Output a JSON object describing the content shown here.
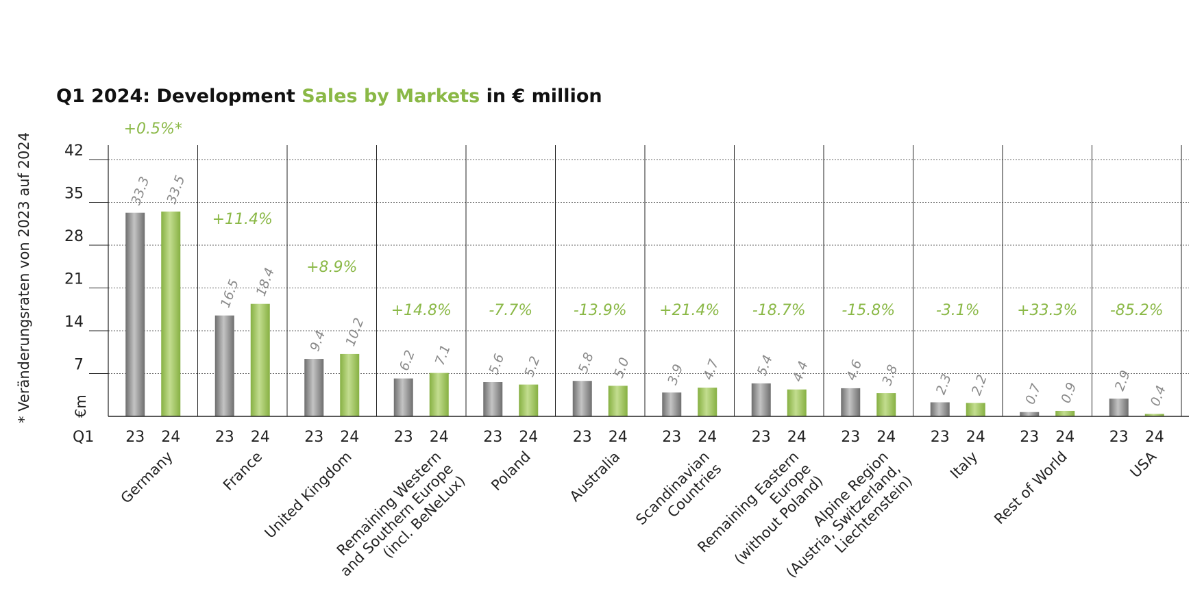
{
  "title": {
    "part1": "Q1 2024: Development ",
    "part2": "Sales by Markets",
    "part3": " in € million"
  },
  "side_note": "* Veränderungsraten von 2023 auf 2024",
  "unit_label": "€m",
  "period_label": "Q1",
  "colors": {
    "bar_2023": "#8c8c8c",
    "bar_2024": "#9cc35c",
    "accent": "#8ab846",
    "value_text": "#8a8a8a",
    "axis": "#222222",
    "grid": "#666666"
  },
  "chart_data": {
    "type": "bar",
    "title": "Q1 2024: Development Sales by Markets in € million",
    "ylabel": "€m",
    "ylim": [
      0,
      42
    ],
    "yticks": [
      7,
      14,
      21,
      28,
      35,
      42
    ],
    "grid": true,
    "series": [
      {
        "name": "23",
        "values": [
          33.3,
          16.5,
          9.4,
          6.2,
          5.6,
          5.8,
          3.9,
          5.4,
          4.6,
          2.3,
          0.7,
          2.9
        ]
      },
      {
        "name": "24",
        "values": [
          33.5,
          18.4,
          10.2,
          7.1,
          5.2,
          5.0,
          4.7,
          4.4,
          3.8,
          2.2,
          0.9,
          0.4
        ]
      }
    ],
    "labels_2023": [
      "33.3",
      "16.5",
      "9.4",
      "6.2",
      "5.6",
      "5.8",
      "3.9",
      "5.4",
      "4.6",
      "2.3",
      "0.7",
      "2.9"
    ],
    "labels_2024": [
      "33.5",
      "18.4",
      "10.2",
      "7.1",
      "5.2",
      "5.0",
      "4.7",
      "4.4",
      "3.8",
      "2.2",
      "0.9",
      "0.4"
    ],
    "changes": [
      "+0.5%*",
      "+11.4%",
      "+8.9%",
      "+14.8%",
      "-7.7%",
      "-13.9%",
      "+21.4%",
      "-18.7%",
      "-15.8%",
      "-3.1%",
      "+33.3%",
      "-85.2%"
    ],
    "categories": [
      [
        "Germany"
      ],
      [
        "France"
      ],
      [
        "United Kingdom"
      ],
      [
        "Remaining Western",
        "and Southern Europe",
        "(incl. BeNeLux)"
      ],
      [
        "Poland"
      ],
      [
        "Australia"
      ],
      [
        "Scandinavian",
        "Countries"
      ],
      [
        "Remaining Eastern",
        "Europe",
        "(without Poland)"
      ],
      [
        "Alpine Region",
        "(Austria, Switzerland,",
        "Liechtenstein)"
      ],
      [
        "Italy"
      ],
      [
        "Rest of World"
      ],
      [
        "USA"
      ]
    ]
  }
}
